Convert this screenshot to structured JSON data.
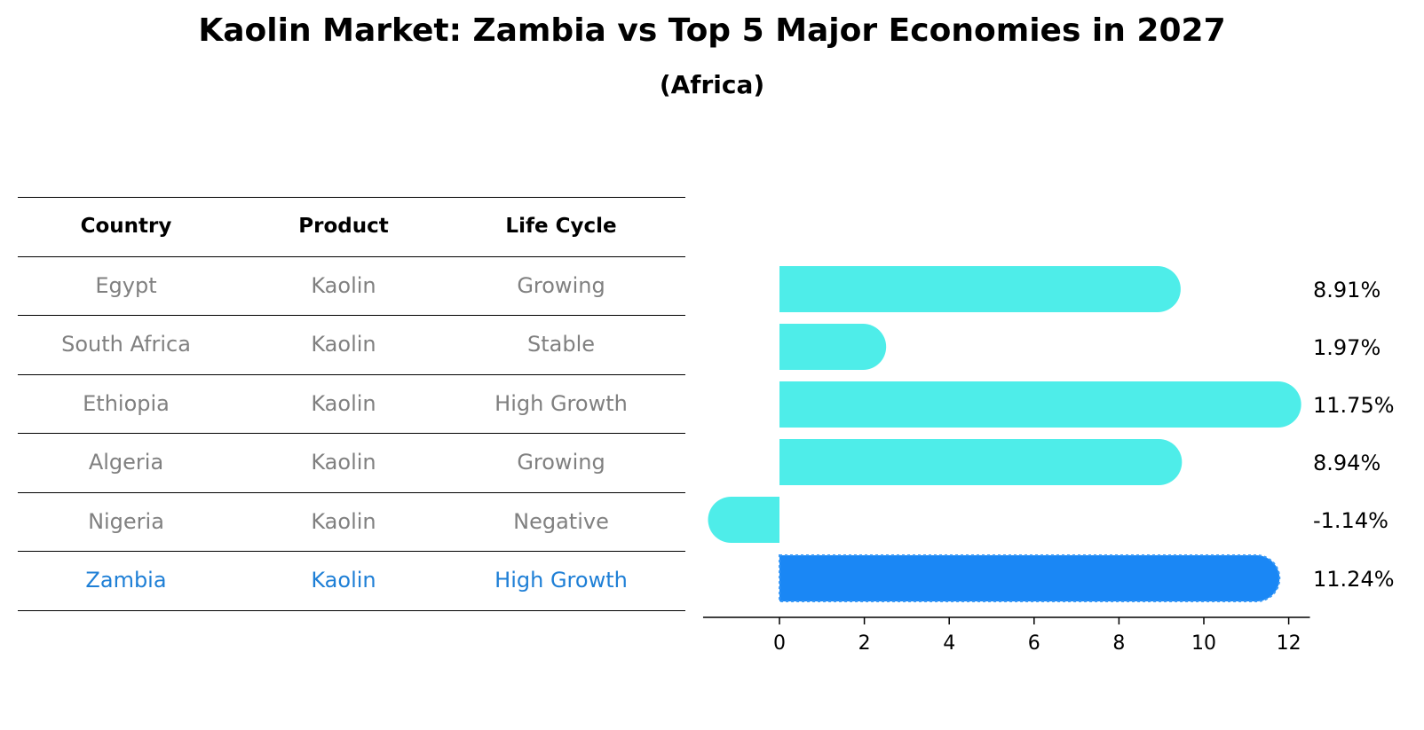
{
  "title": "Kaolin Market: Zambia vs Top 5 Major Economies in 2027",
  "subtitle": "(Africa)",
  "table": {
    "headers": [
      "Country",
      "Product",
      "Life Cycle"
    ],
    "rows": [
      [
        "Egypt",
        "Kaolin",
        "Growing"
      ],
      [
        "South Africa",
        "Kaolin",
        "Stable"
      ],
      [
        "Ethiopia",
        "Kaolin",
        "High Growth"
      ],
      [
        "Algeria",
        "Kaolin",
        "Growing"
      ],
      [
        "Nigeria",
        "Kaolin",
        "Negative"
      ],
      [
        "Zambia",
        "Kaolin",
        "High Growth"
      ]
    ],
    "highlight_row": 5,
    "colors": {
      "header": "#000000",
      "body": "#808080",
      "highlight": "#1e7fd6"
    }
  },
  "chart_data": {
    "type": "bar",
    "orientation": "horizontal",
    "categories": [
      "Egypt",
      "South Africa",
      "Ethiopia",
      "Algeria",
      "Nigeria",
      "Zambia"
    ],
    "values": [
      8.91,
      1.97,
      11.75,
      8.94,
      -1.14,
      11.24
    ],
    "data_labels": [
      "8.91%",
      "1.97%",
      "11.75%",
      "8.94%",
      "-1.14%",
      "11.24%"
    ],
    "xlim": [
      -1.8,
      12.5
    ],
    "xticks": [
      0,
      2,
      4,
      6,
      8,
      10,
      12
    ],
    "colors": {
      "default": "#4eede9",
      "highlight": "#1a87f5"
    },
    "highlight_index": 5
  }
}
